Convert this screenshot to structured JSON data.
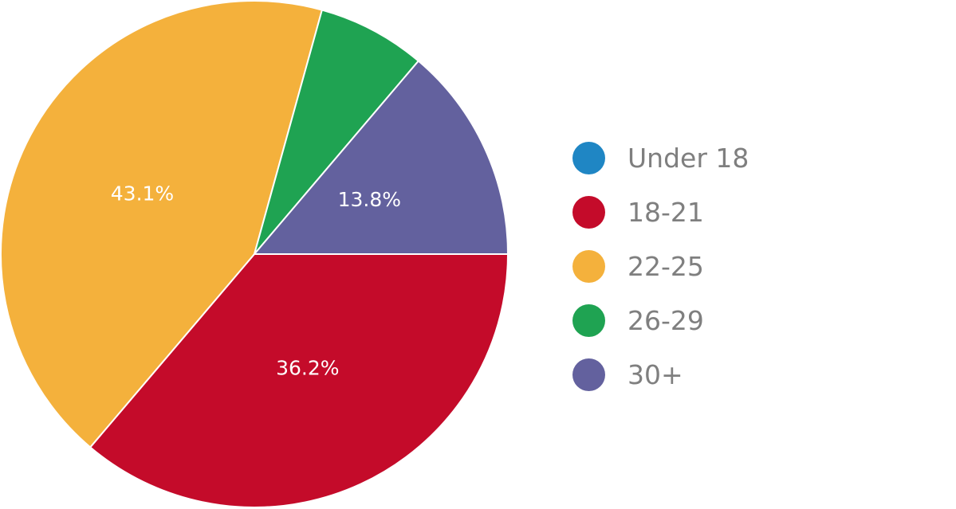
{
  "chart_data": {
    "type": "pie",
    "title": "",
    "categories": [
      "Under 18",
      "18-21",
      "22-25",
      "26-29",
      "30+"
    ],
    "values": [
      0,
      36.2,
      43.1,
      6.9,
      13.8
    ],
    "data_labels": [
      "",
      "36.2%",
      "43.1%",
      "",
      "13.8%"
    ],
    "colors": [
      "#1f86c4",
      "#c40b2a",
      "#f4b13c",
      "#1fa352",
      "#63619e"
    ],
    "start_angle_deg": 0,
    "direction": "clockwise",
    "legend_position": "right"
  }
}
